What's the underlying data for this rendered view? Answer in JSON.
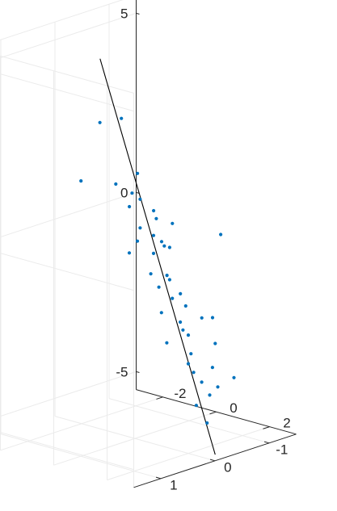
{
  "chart_data": {
    "type": "scatter",
    "view": "3d",
    "grid": true,
    "title": "",
    "xlabel": "",
    "ylabel": "",
    "zlabel": "",
    "xlim": [
      -3,
      3
    ],
    "ylim": [
      -1.5,
      1.5
    ],
    "zlim": [
      -5.5,
      5.5
    ],
    "x_ticks": [
      {
        "value": -2,
        "label": "-2"
      },
      {
        "value": 0,
        "label": "0"
      },
      {
        "value": 2,
        "label": "2"
      }
    ],
    "y_ticks": [
      {
        "value": 1,
        "label": "1"
      },
      {
        "value": 0,
        "label": "0"
      },
      {
        "value": -1,
        "label": "-1"
      }
    ],
    "z_ticks": [
      {
        "value": 5,
        "label": "5"
      },
      {
        "value": 0,
        "label": "0"
      },
      {
        "value": -5,
        "label": "-5"
      }
    ],
    "colors": {
      "points": "#0072BD",
      "fit_line": "#000000",
      "grid": "#ebebeb",
      "axis": "#262626"
    },
    "fit_line": {
      "start": [
        -0.7,
        0.3,
        5.1
      ],
      "end": [
        2.4,
        -0.3,
        -5.6
      ]
    },
    "points": [
      {
        "x": -0.3,
        "y": 0.5,
        "z": 3.5
      },
      {
        "x": 0.1,
        "y": 0.3,
        "z": 3.6
      },
      {
        "x": -0.4,
        "y": 0.8,
        "z": 2.0
      },
      {
        "x": 0.5,
        "y": 0.2,
        "z": 2.1
      },
      {
        "x": 0.5,
        "y": 0.6,
        "z": 2.0
      },
      {
        "x": 0.5,
        "y": 0.3,
        "z": 1.6
      },
      {
        "x": 0.6,
        "y": 0.2,
        "z": 1.4
      },
      {
        "x": 0.4,
        "y": 0.3,
        "z": 1.2
      },
      {
        "x": 0.7,
        "y": 0.0,
        "z": 1.0
      },
      {
        "x": 0.8,
        "y": 0.0,
        "z": 0.8
      },
      {
        "x": 0.6,
        "y": 0.2,
        "z": 0.6
      },
      {
        "x": 1.2,
        "y": -0.1,
        "z": 0.7
      },
      {
        "x": 0.9,
        "y": 0.1,
        "z": 0.4
      },
      {
        "x": 0.7,
        "y": 0.3,
        "z": 0.3
      },
      {
        "x": 1.0,
        "y": 0.0,
        "z": 0.2
      },
      {
        "x": 1.1,
        "y": 0.0,
        "z": 0.1
      },
      {
        "x": 0.6,
        "y": 0.4,
        "z": 0.0
      },
      {
        "x": 0.9,
        "y": 0.1,
        "z": -0.1
      },
      {
        "x": 1.3,
        "y": 0.0,
        "z": 0.1
      },
      {
        "x": 2.2,
        "y": -0.5,
        "z": 0.4
      },
      {
        "x": 1.0,
        "y": 0.2,
        "z": -0.6
      },
      {
        "x": 1.2,
        "y": 0.0,
        "z": -0.7
      },
      {
        "x": 1.3,
        "y": 0.0,
        "z": -0.8
      },
      {
        "x": 1.1,
        "y": 0.1,
        "z": -1.0
      },
      {
        "x": 1.5,
        "y": -0.1,
        "z": -1.2
      },
      {
        "x": 1.4,
        "y": 0.0,
        "z": -1.3
      },
      {
        "x": 1.7,
        "y": -0.1,
        "z": -1.5
      },
      {
        "x": 1.4,
        "y": 0.2,
        "z": -1.6
      },
      {
        "x": 2.1,
        "y": -0.2,
        "z": -1.8
      },
      {
        "x": 1.7,
        "y": 0.0,
        "z": -1.9
      },
      {
        "x": 2.3,
        "y": -0.3,
        "z": -1.8
      },
      {
        "x": 1.8,
        "y": 0.0,
        "z": -2.1
      },
      {
        "x": 2.0,
        "y": 0.0,
        "z": -2.2
      },
      {
        "x": 1.6,
        "y": 0.2,
        "z": -2.4
      },
      {
        "x": 2.4,
        "y": -0.3,
        "z": -2.5
      },
      {
        "x": 2.1,
        "y": 0.0,
        "z": -2.7
      },
      {
        "x": 2.0,
        "y": 0.0,
        "z": -3.0
      },
      {
        "x": 2.5,
        "y": -0.2,
        "z": -3.1
      },
      {
        "x": 2.2,
        "y": 0.0,
        "z": -3.2
      },
      {
        "x": 2.3,
        "y": -0.1,
        "z": -3.5
      },
      {
        "x": 2.7,
        "y": -0.2,
        "z": -3.6
      },
      {
        "x": 2.9,
        "y": -0.4,
        "z": -3.4
      },
      {
        "x": 2.6,
        "y": -0.1,
        "z": -3.8
      },
      {
        "x": 2.3,
        "y": 0.0,
        "z": -4.1
      },
      {
        "x": 2.5,
        "y": -0.1,
        "z": -4.6
      }
    ]
  }
}
